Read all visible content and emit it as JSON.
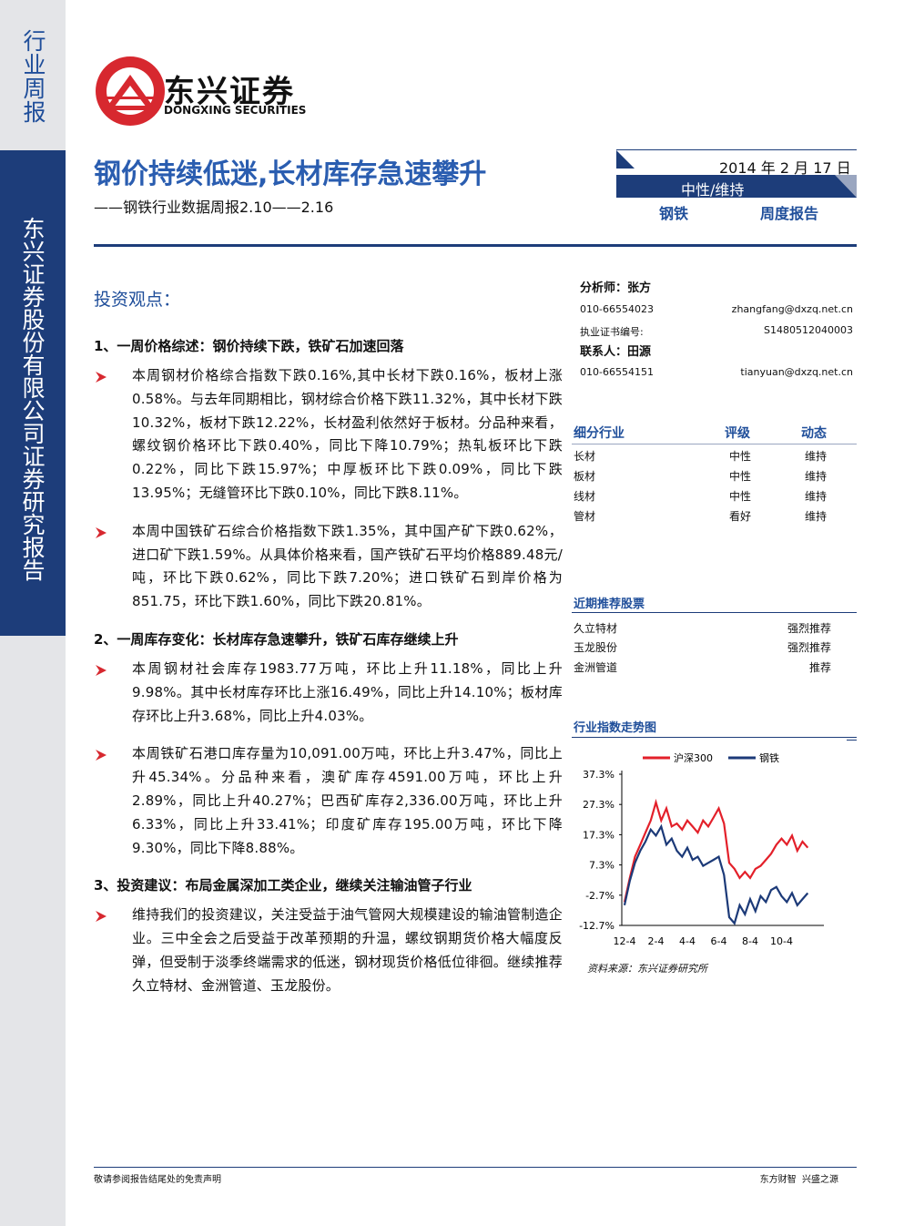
{
  "sidebar": {
    "report_category": "行业周报",
    "company": "东兴证券股份有限公司证券研究报告"
  },
  "header": {
    "logo_name": "东兴证券",
    "logo_en": "DONGXING SECURITIES",
    "title": "钢价持续低迷,长材库存急速攀升",
    "subtitle": "——钢铁行业数据周报2.10——2.16",
    "date": "2014 年 2 月 17 日",
    "rating": "中性/维持",
    "industry": "钢铁",
    "report_type": "周度报告"
  },
  "contacts": {
    "analyst": "分析师：张方",
    "analyst_phone": "010-66554023",
    "analyst_email": "zhangfang@dxzq.net.cn",
    "cert_label": "执业证书编号:",
    "cert_no": "S1480512040003",
    "contact": "联系人：田源",
    "contact_phone": "010-66554151",
    "contact_email": "tianyuan@dxzq.net.cn"
  },
  "ratings": {
    "header": [
      "细分行业",
      "评级",
      "动态"
    ],
    "rows": [
      [
        "长材",
        "中性",
        "维持"
      ],
      [
        "板材",
        "中性",
        "维持"
      ],
      [
        "线材",
        "中性",
        "维持"
      ],
      [
        "管材",
        "看好",
        "维持"
      ]
    ]
  },
  "stocks": {
    "title": "近期推荐股票",
    "rows": [
      [
        "久立特材",
        "强烈推荐"
      ],
      [
        "玉龙股份",
        "强烈推荐"
      ],
      [
        "金洲管道",
        "推荐"
      ]
    ]
  },
  "body": {
    "title": "投资观点：",
    "sections": [
      {
        "heading": "1、一周价格综述：钢价持续下跌，铁矿石加速回落",
        "items": [
          "本周钢材价格综合指数下跌0.16%,其中长材下跌0.16%，板材上涨0.58%。与去年同期相比，钢材综合价格下跌11.32%，其中长材下跌10.32%，板材下跌12.22%，长材盈利依然好于板材。分品种来看，螺纹钢价格环比下跌0.40%，同比下降10.79%；热轧板环比下跌0.22%，同比下跌15.97%；中厚板环比下跌0.09%，同比下跌13.95%；无缝管环比下跌0.10%，同比下跌8.11%。",
          "本周中国铁矿石综合价格指数下跌1.35%，其中国产矿下跌0.62%，进口矿下跌1.59%。从具体价格来看，国产铁矿石平均价格889.48元/吨，环比下跌0.62%，同比下跌7.20%；进口铁矿石到岸价格为851.75，环比下跌1.60%，同比下跌20.81%。"
        ]
      },
      {
        "heading": "2、一周库存变化：长材库存急速攀升，铁矿石库存继续上升",
        "items": [
          "本周钢材社会库存1983.77万吨，环比上升11.18%，同比上升9.98%。其中长材库存环比上涨16.49%，同比上升14.10%；板材库存环比上升3.68%，同比上升4.03%。",
          "本周铁矿石港口库存量为10,091.00万吨，环比上升3.47%，同比上升45.34%。分品种来看，澳矿库存4591.00万吨，环比上升2.89%，同比上升40.27%；巴西矿库存2,336.00万吨，环比上升6.33%，同比上升33.41%；印度矿库存195.00万吨，环比下降9.30%，同比下降8.88%。"
        ]
      },
      {
        "heading": "3、投资建议：布局金属深加工类企业，继续关注输油管子行业",
        "items": [
          "维持我们的投资建议，关注受益于油气管网大规模建设的输油管制造企业。三中全会之后受益于改革预期的升温，螺纹钢期货价格大幅度反弹，但受制于淡季终端需求的低迷，钢材现货价格低位徘徊。继续推荐久立特材、金洲管道、玉龙股份。"
        ]
      }
    ]
  },
  "chart_data": {
    "type": "line",
    "title": "行业指数走势图",
    "source": "资料来源：东兴证券研究所",
    "categories": [
      "12-4",
      null,
      null,
      null,
      null,
      null,
      "2-4",
      null,
      null,
      null,
      null,
      null,
      "4-4",
      null,
      null,
      null,
      null,
      null,
      "6-4",
      null,
      null,
      null,
      null,
      null,
      "8-4",
      null,
      null,
      null,
      null,
      null,
      "10-4",
      null,
      null,
      null,
      null,
      null
    ],
    "series": [
      {
        "name": "沪深300",
        "color": "#e3202a",
        "values": [
          -5,
          3,
          10,
          14,
          18,
          22,
          28,
          22,
          26,
          20,
          21,
          19,
          22,
          20,
          18,
          22,
          20,
          23,
          26,
          21,
          8,
          6,
          3,
          5,
          3,
          6,
          7,
          9,
          11,
          14,
          16,
          14,
          17,
          12,
          15,
          13
        ]
      },
      {
        "name": "钢铁",
        "color": "#1c3a78",
        "values": [
          -6,
          2,
          8,
          12,
          15,
          19,
          17,
          20,
          14,
          16,
          12,
          10,
          13,
          9,
          10,
          7,
          8,
          9,
          10,
          4,
          -10,
          -12,
          -6,
          -9,
          -4,
          -8,
          -3,
          -5,
          -1,
          0,
          -3,
          -5,
          -2,
          -6,
          -4,
          -2
        ]
      }
    ],
    "ylim": [
      -12.7,
      37.3
    ],
    "yticks": [
      {
        "value": 37.3,
        "label": "37.3%"
      },
      {
        "value": 27.3,
        "label": "27.3%"
      },
      {
        "value": 17.3,
        "label": "17.3%"
      },
      {
        "value": 7.3,
        "label": "7.3%"
      },
      {
        "value": -2.7,
        "label": "-2.7%"
      },
      {
        "value": -12.7,
        "label": "-12.7%"
      }
    ]
  },
  "footer": {
    "left": "敬请参阅报告结尾处的免责声明",
    "right": "东方财智  兴盛之源"
  }
}
